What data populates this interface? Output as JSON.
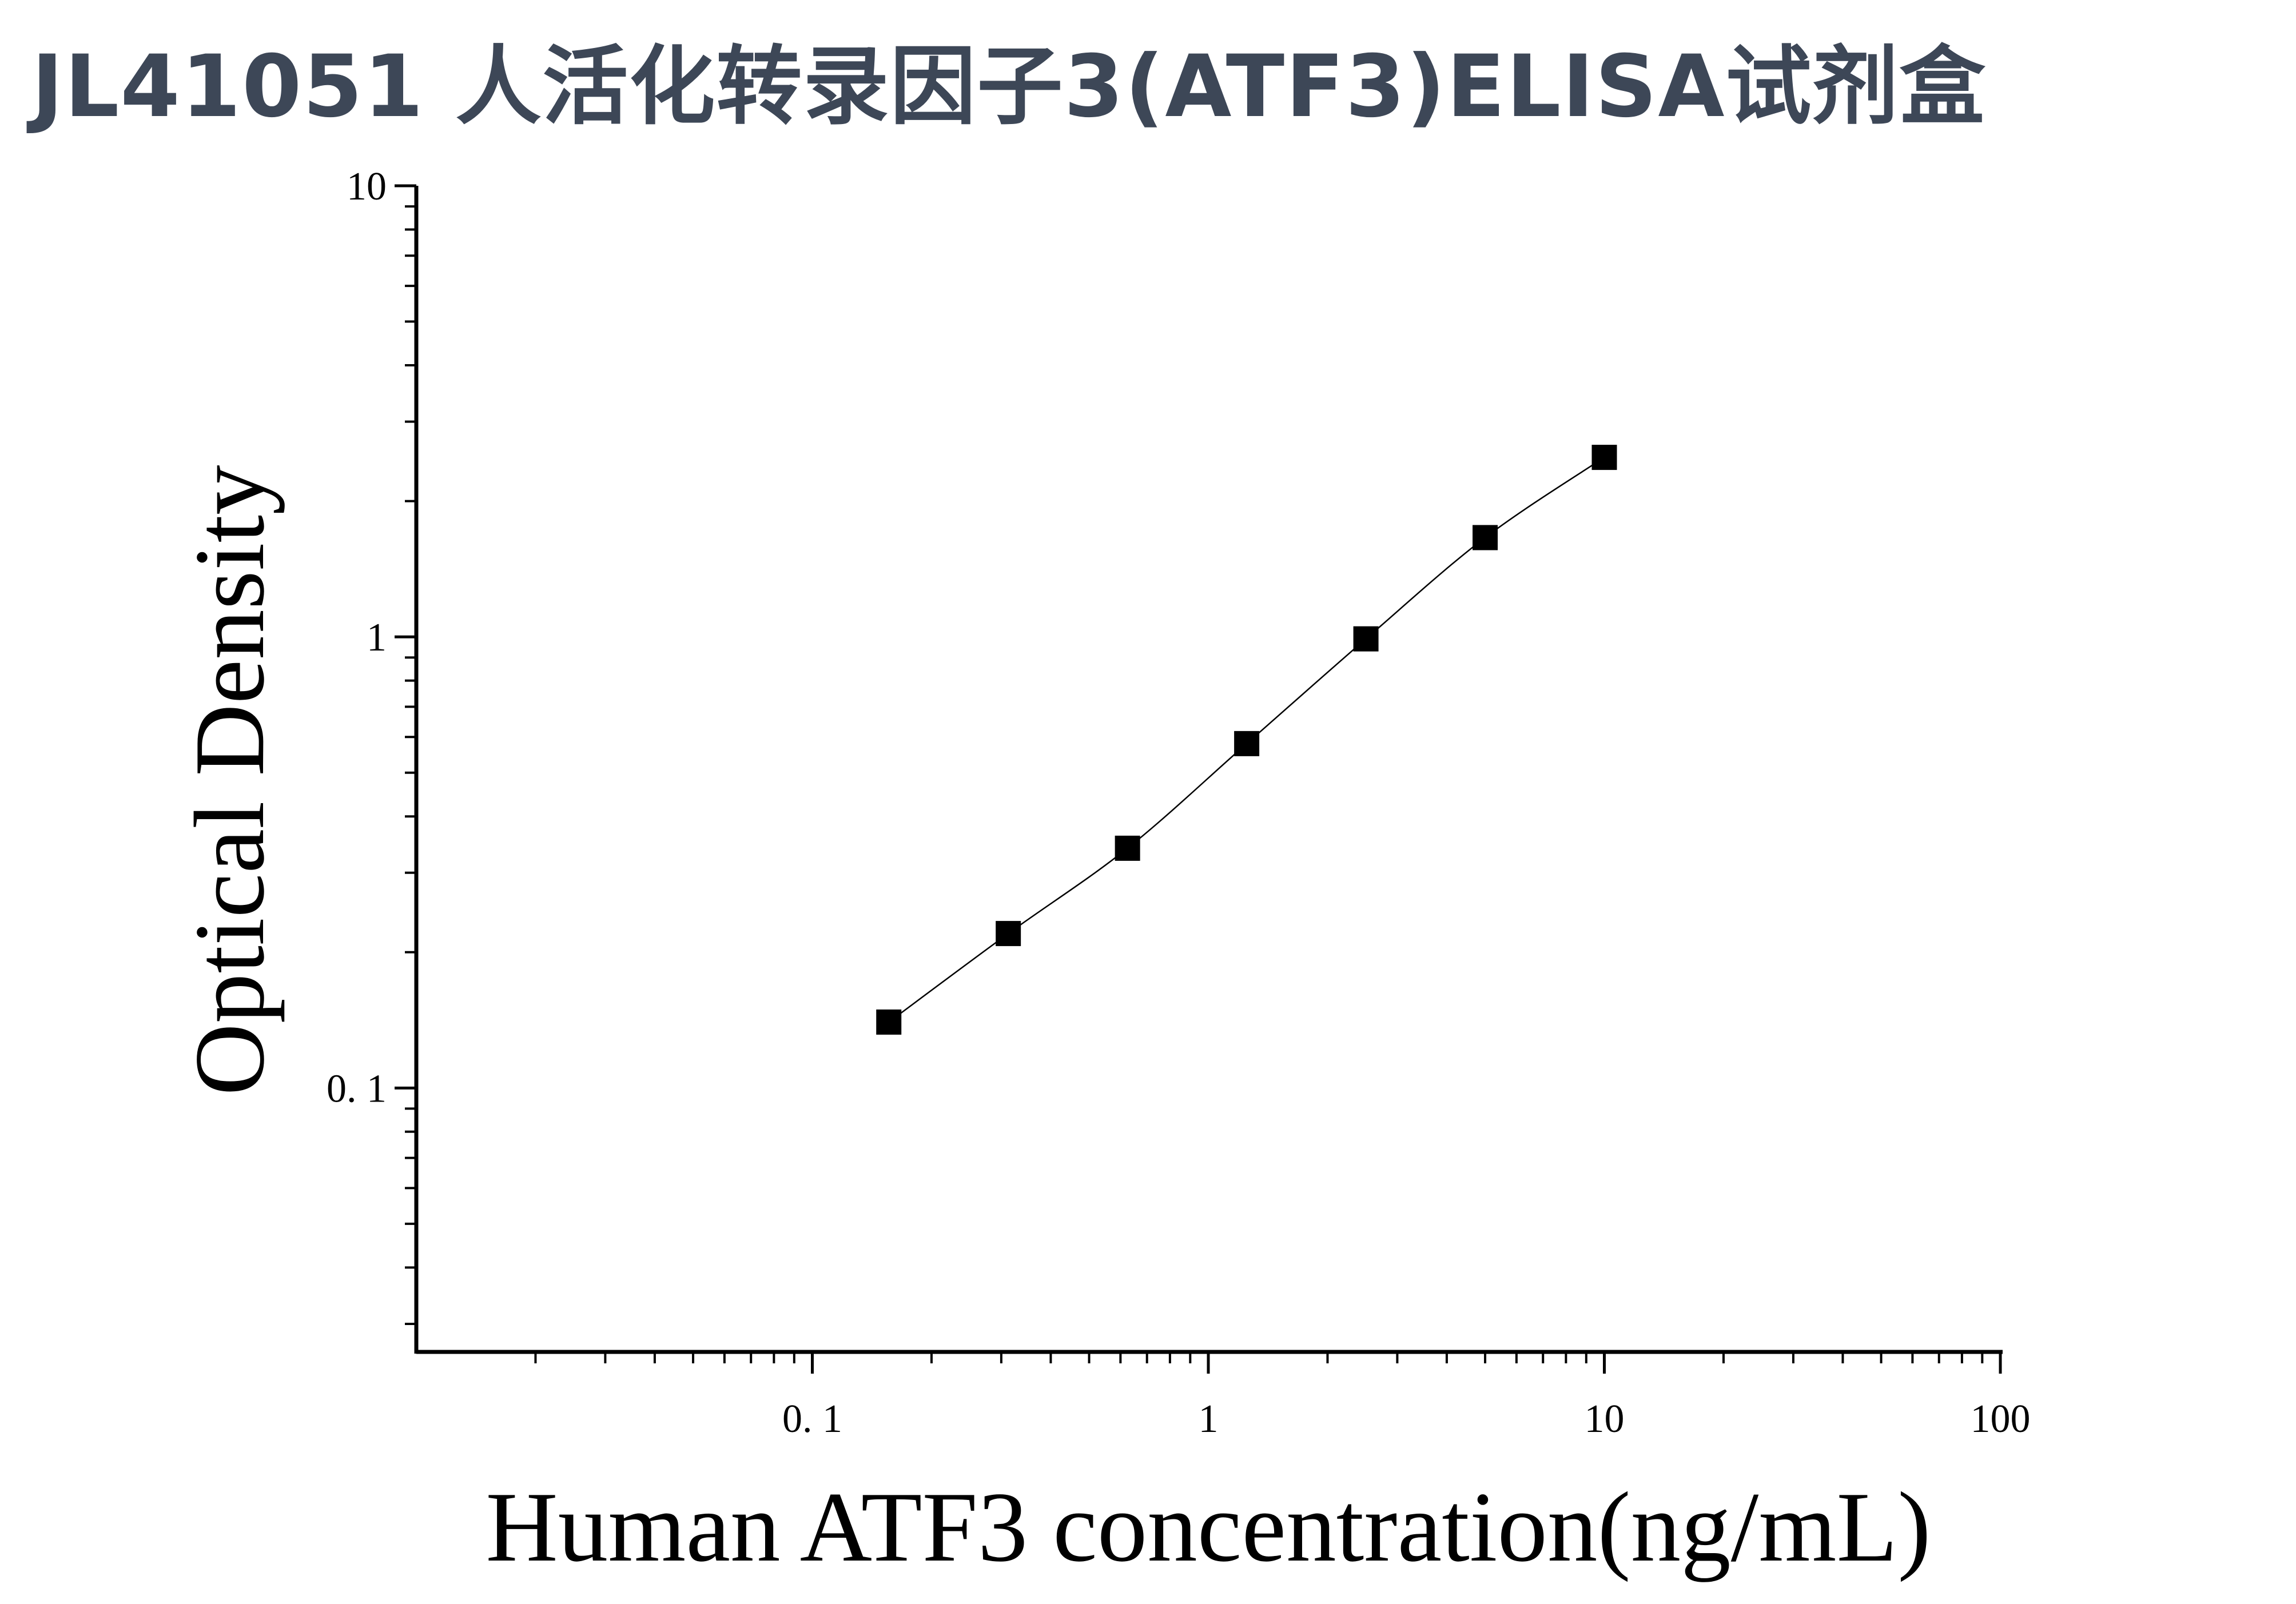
{
  "title": "JL41051 人活化转录因子3(ATF3)ELISA试剂盒",
  "chart_data": {
    "type": "scatter",
    "title": "JL41051 人活化转录因子3(ATF3)ELISA试剂盒",
    "xlabel": "Human ATF3 concentration(ng/mL)",
    "ylabel": "Optical Density",
    "xscale": "log",
    "yscale": "log",
    "xlim": [
      0.01,
      100
    ],
    "ylim": [
      0.026,
      10
    ],
    "x_ticks": [
      {
        "value": 0.1,
        "label": "0. 1"
      },
      {
        "value": 1,
        "label": "1"
      },
      {
        "value": 10,
        "label": "10"
      },
      {
        "value": 100,
        "label": "100"
      }
    ],
    "y_ticks": [
      {
        "value": 0.1,
        "label": "0. 1"
      },
      {
        "value": 1,
        "label": "1"
      },
      {
        "value": 10,
        "label": "10"
      }
    ],
    "series": [
      {
        "x": [
          0.156,
          0.3125,
          0.625,
          1.25,
          2.5,
          5,
          10
        ],
        "y": [
          0.14,
          0.22,
          0.34,
          0.58,
          0.99,
          1.66,
          2.5
        ],
        "marker": "square",
        "color": "#000000",
        "fit_line": true
      }
    ],
    "grid": false,
    "legend": "none"
  }
}
